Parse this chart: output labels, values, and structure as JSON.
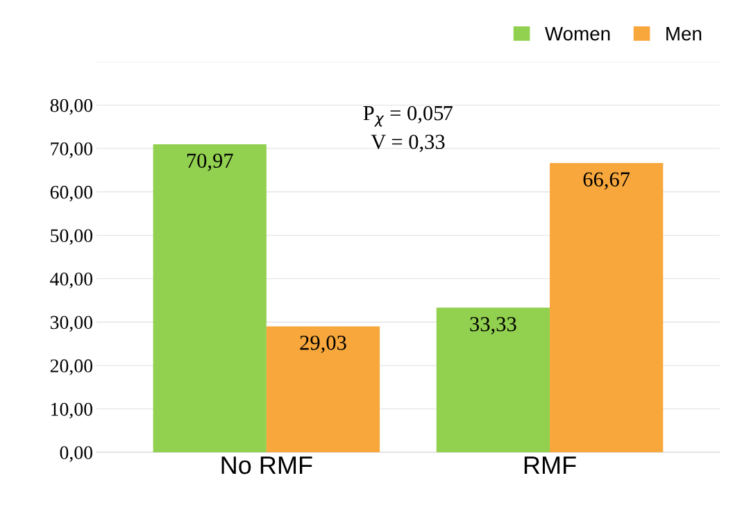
{
  "chart_data": {
    "type": "bar",
    "categories": [
      "No RMF",
      "RMF"
    ],
    "series": [
      {
        "name": "Women",
        "color": "#92d050",
        "values": [
          70.97,
          33.33
        ],
        "value_labels": [
          "70,97",
          "33,33"
        ]
      },
      {
        "name": "Men",
        "color": "#f8a73c",
        "values": [
          29.03,
          66.67
        ],
        "value_labels": [
          "29,03",
          "66,67"
        ]
      }
    ],
    "ylim": [
      0,
      90
    ],
    "yticks": [
      {
        "value": 0,
        "label": "0,00"
      },
      {
        "value": 10,
        "label": "10,00"
      },
      {
        "value": 20,
        "label": "20,00"
      },
      {
        "value": 30,
        "label": "30,00"
      },
      {
        "value": 40,
        "label": "40,00"
      },
      {
        "value": 50,
        "label": "50,00"
      },
      {
        "value": 60,
        "label": "60,00"
      },
      {
        "value": 70,
        "label": "70,00"
      },
      {
        "value": 80,
        "label": "80,00"
      },
      {
        "value": 90,
        "label": null
      }
    ],
    "annotations": [
      "P$_{χ}$ = 0,057",
      "V = 0,33"
    ],
    "grid": "y",
    "legend": "top right"
  }
}
